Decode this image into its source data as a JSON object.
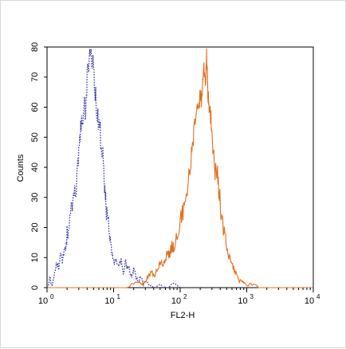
{
  "chart_data": {
    "type": "line",
    "title": "",
    "xlabel": "FL2-H",
    "ylabel": "Counts",
    "x_scale": "log",
    "xlim": [
      1,
      10000
    ],
    "ylim": [
      0,
      80
    ],
    "x_ticks": [
      {
        "value": 1,
        "base": "10",
        "exp": "0"
      },
      {
        "value": 10,
        "base": "10",
        "exp": "1"
      },
      {
        "value": 100,
        "base": "10",
        "exp": "2"
      },
      {
        "value": 1000,
        "base": "10",
        "exp": "3"
      },
      {
        "value": 10000,
        "base": "10",
        "exp": "4"
      }
    ],
    "y_ticks": [
      "0",
      "10",
      "20",
      "30",
      "40",
      "50",
      "60",
      "70",
      "80"
    ],
    "grid": false,
    "series": [
      {
        "color": "#3a3aa8",
        "style": "dotted",
        "x": [
          1.0,
          1.1,
          1.2,
          1.3,
          1.4,
          1.5,
          1.6,
          1.7,
          1.8,
          1.9,
          2.0,
          2.2,
          2.4,
          2.6,
          2.8,
          3.0,
          3.2,
          3.4,
          3.6,
          3.8,
          4.0,
          4.3,
          4.6,
          5.0,
          5.3,
          5.6,
          6.0,
          6.4,
          6.8,
          7.2,
          7.6,
          8.0,
          8.5,
          9.0,
          9.5,
          10,
          11,
          12,
          13,
          14,
          15,
          16,
          17,
          18,
          19,
          20,
          22,
          24,
          26,
          28,
          30,
          35,
          40,
          50,
          60,
          80,
          100
        ],
        "values": [
          0,
          3,
          1,
          5,
          8,
          6,
          11,
          9,
          13,
          12,
          18,
          22,
          28,
          30,
          35,
          47,
          52,
          55,
          60,
          58,
          70,
          76,
          78,
          74,
          65,
          58,
          55,
          50,
          46,
          36,
          28,
          24,
          20,
          16,
          12,
          9,
          8,
          6,
          10,
          4,
          9,
          6,
          7,
          5,
          4,
          6,
          3,
          2,
          4,
          1,
          2,
          1,
          0,
          1,
          0,
          1,
          0
        ]
      },
      {
        "color": "#e07020",
        "style": "solid",
        "x": [
          1.0,
          5,
          10,
          15,
          20,
          25,
          28,
          32,
          36,
          40,
          45,
          50,
          55,
          60,
          65,
          70,
          75,
          80,
          90,
          100,
          110,
          120,
          130,
          140,
          150,
          160,
          170,
          180,
          190,
          200,
          210,
          220,
          230,
          240,
          250,
          260,
          270,
          280,
          290,
          300,
          320,
          340,
          360,
          380,
          400,
          430,
          460,
          500,
          550,
          600,
          650,
          700,
          800,
          900,
          1000,
          1200,
          1500,
          2000,
          3000,
          10000
        ],
        "values": [
          0,
          0,
          0,
          0,
          1,
          2,
          1,
          3,
          5,
          4,
          6,
          8,
          7,
          10,
          12,
          11,
          14,
          13,
          17,
          22,
          26,
          30,
          35,
          40,
          46,
          50,
          55,
          60,
          62,
          65,
          63,
          68,
          72,
          70,
          77,
          66,
          62,
          60,
          56,
          50,
          44,
          38,
          40,
          32,
          28,
          22,
          18,
          14,
          10,
          8,
          6,
          4,
          2,
          2,
          1,
          1,
          0,
          0,
          0,
          0
        ]
      }
    ]
  }
}
